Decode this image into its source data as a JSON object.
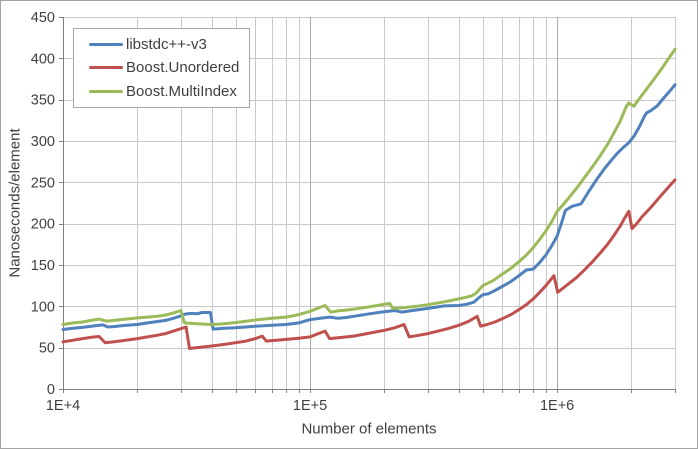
{
  "chart_data": {
    "type": "line",
    "title": "",
    "xlabel": "Number of elements",
    "ylabel": "Nanoseconds/element",
    "x_scale": "log10",
    "xlim": [
      10000,
      3000000
    ],
    "ylim": [
      0,
      450
    ],
    "grid": "horizontal-major, vertical-log-minor-and-major",
    "legend_position": "top-left",
    "y_ticks": [
      0,
      50,
      100,
      150,
      200,
      250,
      300,
      350,
      400,
      450
    ],
    "x_tick_labels": [
      {
        "label": "1E+4",
        "value": 10000
      },
      {
        "label": "1E+5",
        "value": 100000
      },
      {
        "label": "1E+6",
        "value": 1000000
      }
    ],
    "series": [
      {
        "name": "libstdc++-v3",
        "color": "#4F81BD",
        "points": [
          [
            10000,
            72
          ],
          [
            11000,
            73.5
          ],
          [
            12000,
            74.5
          ],
          [
            13500,
            76.5
          ],
          [
            14500,
            77.5
          ],
          [
            15200,
            75
          ],
          [
            16000,
            75.5
          ],
          [
            18000,
            77
          ],
          [
            20000,
            78
          ],
          [
            22000,
            80
          ],
          [
            24000,
            81.5
          ],
          [
            26000,
            83
          ],
          [
            28000,
            85.5
          ],
          [
            30000,
            88.5
          ],
          [
            31000,
            90.5
          ],
          [
            33000,
            91.5
          ],
          [
            35000,
            91
          ],
          [
            36500,
            92.5
          ],
          [
            39500,
            92.5
          ],
          [
            40500,
            72.5
          ],
          [
            45000,
            73.5
          ],
          [
            50000,
            74
          ],
          [
            55000,
            75
          ],
          [
            60000,
            76
          ],
          [
            65000,
            76.5
          ],
          [
            70000,
            77
          ],
          [
            80000,
            78
          ],
          [
            90000,
            80
          ],
          [
            100000,
            84
          ],
          [
            110000,
            85.5
          ],
          [
            120000,
            87
          ],
          [
            130000,
            85.5
          ],
          [
            140000,
            86.5
          ],
          [
            150000,
            88
          ],
          [
            170000,
            90.5
          ],
          [
            200000,
            93.5
          ],
          [
            220000,
            95
          ],
          [
            235000,
            93
          ],
          [
            260000,
            95
          ],
          [
            300000,
            97.5
          ],
          [
            350000,
            100.5
          ],
          [
            400000,
            101
          ],
          [
            430000,
            102.5
          ],
          [
            460000,
            105
          ],
          [
            480000,
            110
          ],
          [
            500000,
            114
          ],
          [
            525000,
            115
          ],
          [
            550000,
            118
          ],
          [
            600000,
            124
          ],
          [
            650000,
            130
          ],
          [
            700000,
            137
          ],
          [
            750000,
            144
          ],
          [
            800000,
            145
          ],
          [
            850000,
            153
          ],
          [
            900000,
            162
          ],
          [
            950000,
            173
          ],
          [
            1000000,
            185
          ],
          [
            1040000,
            200
          ],
          [
            1080000,
            216
          ],
          [
            1150000,
            221
          ],
          [
            1250000,
            224
          ],
          [
            1350000,
            240
          ],
          [
            1450000,
            254
          ],
          [
            1550000,
            266
          ],
          [
            1650000,
            276
          ],
          [
            1750000,
            285
          ],
          [
            1850000,
            292
          ],
          [
            1950000,
            298
          ],
          [
            2050000,
            306
          ],
          [
            2150000,
            317
          ],
          [
            2250000,
            329
          ],
          [
            2300000,
            334
          ],
          [
            2400000,
            337
          ],
          [
            2550000,
            343
          ],
          [
            2700000,
            352
          ],
          [
            2850000,
            360
          ],
          [
            3000000,
            368
          ]
        ]
      },
      {
        "name": "Boost.Unordered",
        "color": "#C0504D",
        "points": [
          [
            10000,
            57
          ],
          [
            11000,
            59
          ],
          [
            12000,
            61
          ],
          [
            13000,
            62.5
          ],
          [
            14000,
            63.5
          ],
          [
            14800,
            56
          ],
          [
            16000,
            57
          ],
          [
            18000,
            59
          ],
          [
            20000,
            61
          ],
          [
            22000,
            63
          ],
          [
            24000,
            65
          ],
          [
            26000,
            67
          ],
          [
            28000,
            70
          ],
          [
            30000,
            73
          ],
          [
            31500,
            75
          ],
          [
            32500,
            49
          ],
          [
            36000,
            50.5
          ],
          [
            40000,
            52
          ],
          [
            45000,
            54
          ],
          [
            50000,
            56
          ],
          [
            55000,
            58
          ],
          [
            60000,
            61
          ],
          [
            64000,
            64
          ],
          [
            66500,
            58
          ],
          [
            70000,
            58.5
          ],
          [
            80000,
            60
          ],
          [
            90000,
            61.5
          ],
          [
            100000,
            63
          ],
          [
            108000,
            67
          ],
          [
            115000,
            70
          ],
          [
            120000,
            61
          ],
          [
            130000,
            62
          ],
          [
            150000,
            64
          ],
          [
            170000,
            67
          ],
          [
            200000,
            71
          ],
          [
            220000,
            74
          ],
          [
            240000,
            78
          ],
          [
            252000,
            63
          ],
          [
            270000,
            64.5
          ],
          [
            300000,
            67
          ],
          [
            330000,
            70
          ],
          [
            360000,
            73
          ],
          [
            400000,
            77
          ],
          [
            440000,
            82
          ],
          [
            475000,
            88
          ],
          [
            490000,
            76
          ],
          [
            520000,
            78
          ],
          [
            560000,
            81
          ],
          [
            600000,
            85
          ],
          [
            650000,
            90
          ],
          [
            700000,
            96
          ],
          [
            750000,
            102
          ],
          [
            800000,
            109
          ],
          [
            850000,
            117
          ],
          [
            900000,
            125
          ],
          [
            940000,
            132
          ],
          [
            970000,
            137
          ],
          [
            1005000,
            117
          ],
          [
            1100000,
            126
          ],
          [
            1200000,
            135
          ],
          [
            1300000,
            145
          ],
          [
            1400000,
            155
          ],
          [
            1500000,
            165
          ],
          [
            1600000,
            175
          ],
          [
            1700000,
            186
          ],
          [
            1800000,
            197
          ],
          [
            1870000,
            206
          ],
          [
            1950000,
            215
          ],
          [
            2010000,
            194
          ],
          [
            2100000,
            200
          ],
          [
            2200000,
            208
          ],
          [
            2400000,
            220
          ],
          [
            2600000,
            232
          ],
          [
            2800000,
            243
          ],
          [
            3000000,
            253
          ]
        ]
      },
      {
        "name": "Boost.MultiIndex",
        "color": "#9BBB59",
        "points": [
          [
            10000,
            78
          ],
          [
            11000,
            80
          ],
          [
            12000,
            81
          ],
          [
            13000,
            83
          ],
          [
            14000,
            84.5
          ],
          [
            15000,
            82
          ],
          [
            16000,
            83
          ],
          [
            18000,
            84.5
          ],
          [
            20000,
            86
          ],
          [
            22000,
            87
          ],
          [
            24000,
            88
          ],
          [
            26000,
            89.5
          ],
          [
            28000,
            92
          ],
          [
            30000,
            95
          ],
          [
            31000,
            80
          ],
          [
            35000,
            79
          ],
          [
            40000,
            78
          ],
          [
            45000,
            79
          ],
          [
            50000,
            80.5
          ],
          [
            55000,
            82
          ],
          [
            60000,
            83.5
          ],
          [
            65000,
            84.5
          ],
          [
            70000,
            85.5
          ],
          [
            80000,
            87
          ],
          [
            90000,
            90
          ],
          [
            100000,
            94
          ],
          [
            108000,
            98
          ],
          [
            115000,
            101
          ],
          [
            121000,
            93
          ],
          [
            130000,
            94.5
          ],
          [
            150000,
            96.5
          ],
          [
            170000,
            99
          ],
          [
            200000,
            102.5
          ],
          [
            210000,
            103.5
          ],
          [
            216000,
            97.5
          ],
          [
            240000,
            98.5
          ],
          [
            270000,
            100
          ],
          [
            300000,
            102
          ],
          [
            350000,
            105.5
          ],
          [
            400000,
            109
          ],
          [
            450000,
            112.5
          ],
          [
            470000,
            116
          ],
          [
            500000,
            125
          ],
          [
            550000,
            131
          ],
          [
            600000,
            139
          ],
          [
            650000,
            146
          ],
          [
            700000,
            154
          ],
          [
            750000,
            162
          ],
          [
            800000,
            171
          ],
          [
            850000,
            181
          ],
          [
            900000,
            191
          ],
          [
            950000,
            202
          ],
          [
            1000000,
            215
          ],
          [
            1050000,
            222
          ],
          [
            1100000,
            229
          ],
          [
            1200000,
            243
          ],
          [
            1300000,
            257
          ],
          [
            1400000,
            270
          ],
          [
            1500000,
            283
          ],
          [
            1600000,
            296
          ],
          [
            1700000,
            310
          ],
          [
            1800000,
            324
          ],
          [
            1900000,
            341
          ],
          [
            1950000,
            346
          ],
          [
            2050000,
            342
          ],
          [
            2100000,
            347
          ],
          [
            2200000,
            355
          ],
          [
            2400000,
            370
          ],
          [
            2600000,
            384
          ],
          [
            2800000,
            398
          ],
          [
            3000000,
            411
          ]
        ]
      }
    ]
  },
  "colors": {
    "plot_text": "#404040",
    "axis_line": "#808080",
    "gridline_minor": "#C9C9C9",
    "gridline_major": "#A9A9A9",
    "legend_border": "#A6A6A6",
    "chart_border": "#A3A3A3",
    "background": "#FFFFFF"
  }
}
